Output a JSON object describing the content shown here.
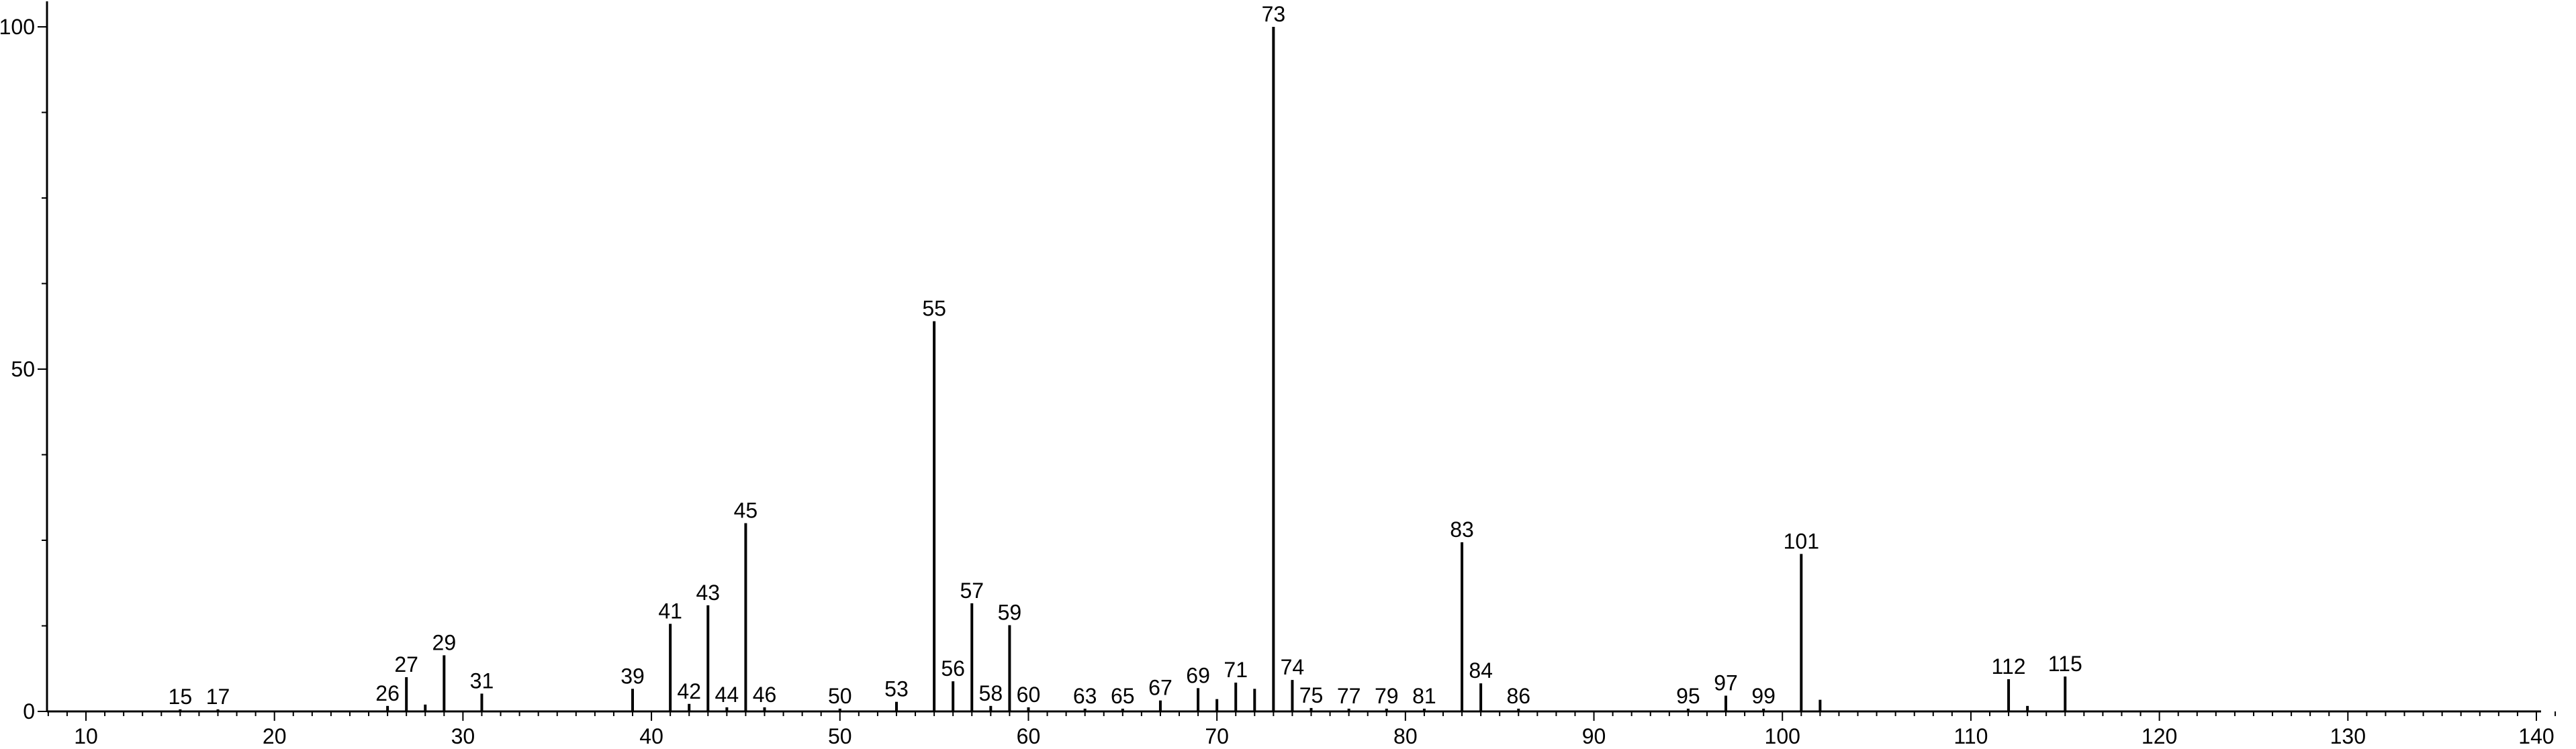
{
  "chart_data": {
    "type": "bar",
    "title": "",
    "xlabel": "",
    "ylabel": "",
    "xlim": [
      8,
      141
    ],
    "ylim": [
      0,
      100
    ],
    "x_ticks": [
      10,
      20,
      30,
      40,
      50,
      60,
      70,
      80,
      90,
      100,
      110,
      120,
      130,
      140
    ],
    "y_ticks": [
      0,
      50,
      100
    ],
    "grid": false,
    "legend": "none",
    "color": "#000000",
    "peaks": [
      {
        "x": 15,
        "y": 0.3,
        "label": "15"
      },
      {
        "x": 17,
        "y": 0.3,
        "label": "17"
      },
      {
        "x": 26,
        "y": 0.8,
        "label": "26"
      },
      {
        "x": 27,
        "y": 5,
        "label": "27"
      },
      {
        "x": 28,
        "y": 1,
        "label": ""
      },
      {
        "x": 29,
        "y": 8.2,
        "label": "29"
      },
      {
        "x": 31,
        "y": 2.6,
        "label": "31"
      },
      {
        "x": 39,
        "y": 3.3,
        "label": "39"
      },
      {
        "x": 41,
        "y": 12.8,
        "label": "41"
      },
      {
        "x": 42,
        "y": 1.1,
        "label": "42"
      },
      {
        "x": 43,
        "y": 15.5,
        "label": "43"
      },
      {
        "x": 44,
        "y": 0.6,
        "label": "44"
      },
      {
        "x": 45,
        "y": 27.5,
        "label": "45"
      },
      {
        "x": 46,
        "y": 0.6,
        "label": "46"
      },
      {
        "x": 50,
        "y": 0.4,
        "label": "50"
      },
      {
        "x": 53,
        "y": 1.4,
        "label": "53"
      },
      {
        "x": 55,
        "y": 57,
        "label": "55"
      },
      {
        "x": 56,
        "y": 4.4,
        "label": "56"
      },
      {
        "x": 57,
        "y": 15.8,
        "label": "57"
      },
      {
        "x": 58,
        "y": 0.8,
        "label": "58"
      },
      {
        "x": 59,
        "y": 12.6,
        "label": "59"
      },
      {
        "x": 60,
        "y": 0.6,
        "label": "60"
      },
      {
        "x": 63,
        "y": 0.4,
        "label": "63"
      },
      {
        "x": 65,
        "y": 0.4,
        "label": "65"
      },
      {
        "x": 67,
        "y": 1.6,
        "label": "67"
      },
      {
        "x": 69,
        "y": 3.4,
        "label": "69"
      },
      {
        "x": 70,
        "y": 1.8,
        "label": ""
      },
      {
        "x": 71,
        "y": 4.2,
        "label": "71"
      },
      {
        "x": 72,
        "y": 3.3,
        "label": ""
      },
      {
        "x": 73,
        "y": 100,
        "label": "73"
      },
      {
        "x": 74,
        "y": 4.6,
        "label": "74"
      },
      {
        "x": 75,
        "y": 0.5,
        "label": "75"
      },
      {
        "x": 77,
        "y": 0.4,
        "label": "77"
      },
      {
        "x": 79,
        "y": 0.4,
        "label": "79"
      },
      {
        "x": 81,
        "y": 0.4,
        "label": "81"
      },
      {
        "x": 83,
        "y": 24.7,
        "label": "83"
      },
      {
        "x": 84,
        "y": 4.1,
        "label": "84"
      },
      {
        "x": 86,
        "y": 0.4,
        "label": "86"
      },
      {
        "x": 95,
        "y": 0.4,
        "label": "95"
      },
      {
        "x": 97,
        "y": 2.3,
        "label": "97"
      },
      {
        "x": 99,
        "y": 0.4,
        "label": "99"
      },
      {
        "x": 101,
        "y": 23,
        "label": "101"
      },
      {
        "x": 102,
        "y": 1.7,
        "label": ""
      },
      {
        "x": 112,
        "y": 4.7,
        "label": "112"
      },
      {
        "x": 113,
        "y": 0.8,
        "label": ""
      },
      {
        "x": 115,
        "y": 5.1,
        "label": "115"
      }
    ]
  }
}
